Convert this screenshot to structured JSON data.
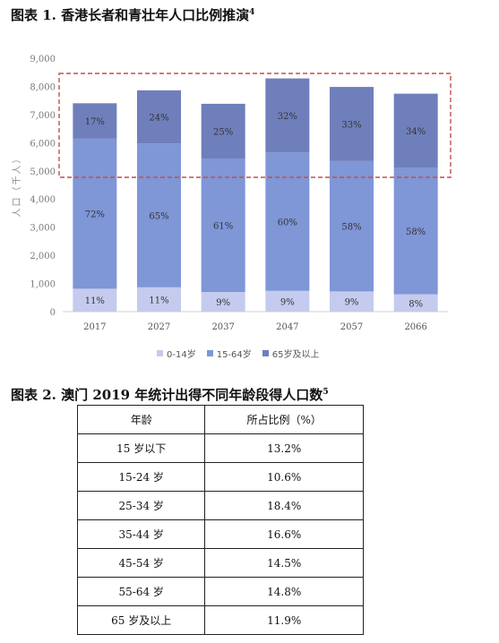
{
  "figure1": {
    "title": "图表 1. 香港长者和青壮年人口比例推演",
    "title_sup": "4"
  },
  "chart_data": {
    "type": "bar",
    "stacked": true,
    "categories": [
      "2017",
      "2027",
      "2037",
      "2047",
      "2057",
      "2066"
    ],
    "totals": [
      7400,
      7860,
      7770,
      8200,
      7980,
      7740
    ],
    "series": [
      {
        "name": "0-14岁",
        "percent": [
          11,
          11,
          9,
          9,
          9,
          8
        ],
        "labels": [
          "11%",
          "11%",
          "9%",
          "9%",
          "9%",
          "8%"
        ],
        "color": "#c4cbee"
      },
      {
        "name": "15-64岁",
        "percent": [
          72,
          65,
          61,
          60,
          58,
          58
        ],
        "labels": [
          "72%",
          "65%",
          "61%",
          "60%",
          "58%",
          "58%"
        ],
        "color": "#7f96d7"
      },
      {
        "name": "65岁及以上",
        "percent": [
          17,
          24,
          25,
          32,
          33,
          34
        ],
        "labels": [
          "17%",
          "24%",
          "25%",
          "32%",
          "33%",
          "34%"
        ],
        "color": "#6f7fbb"
      }
    ],
    "ylabel": "人口（千人）",
    "ylim": [
      0,
      9000
    ],
    "yticks": [
      "0",
      "1,000",
      "2,000",
      "3,000",
      "4,000",
      "5,000",
      "6,000",
      "7,000",
      "8,000",
      "9,000"
    ],
    "grid": false,
    "legend_position": "bottom",
    "annotation": "red dashed box highlighting the 65岁及以上 segments"
  },
  "figure2": {
    "title": "图表 2. 澳门 2019 年统计出得不同年龄段得人口数",
    "title_sup": "5",
    "headers": [
      "年龄",
      "所占比例（%）"
    ],
    "rows": [
      [
        "15 岁以下",
        "13.2%"
      ],
      [
        "15-24 岁",
        "10.6%"
      ],
      [
        "25-34 岁",
        "18.4%"
      ],
      [
        "35-44 岁",
        "16.6%"
      ],
      [
        "45-54 岁",
        "14.5%"
      ],
      [
        "55-64 岁",
        "14.8%"
      ],
      [
        "65 岁及以上",
        "11.9%"
      ]
    ]
  }
}
